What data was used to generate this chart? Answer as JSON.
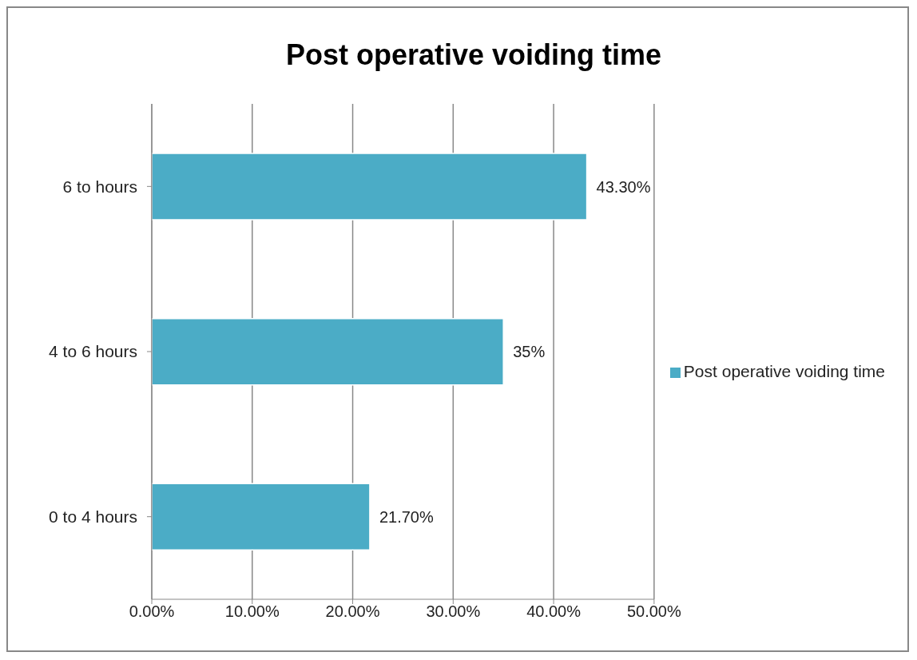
{
  "chart_data": {
    "type": "bar",
    "orientation": "horizontal",
    "title": "Post operative voiding time",
    "categories": [
      "6 to  hours",
      "4 to 6 hours",
      "0 to 4 hours"
    ],
    "series": [
      {
        "name": "Post operative voiding time",
        "color": "#4bacc6",
        "values": [
          43.3,
          35,
          21.7
        ],
        "value_labels": [
          "43.30%",
          "35%",
          "21.70%"
        ]
      }
    ],
    "xlim": [
      0,
      50
    ],
    "xticks": [
      {
        "value": 0,
        "label": "0.00%"
      },
      {
        "value": 10,
        "label": "10.00%"
      },
      {
        "value": 20,
        "label": "20.00%"
      },
      {
        "value": 30,
        "label": "30.00%"
      },
      {
        "value": 40,
        "label": "40.00%"
      },
      {
        "value": 50,
        "label": "50.00%"
      }
    ],
    "grid": "x",
    "legend": "right"
  }
}
